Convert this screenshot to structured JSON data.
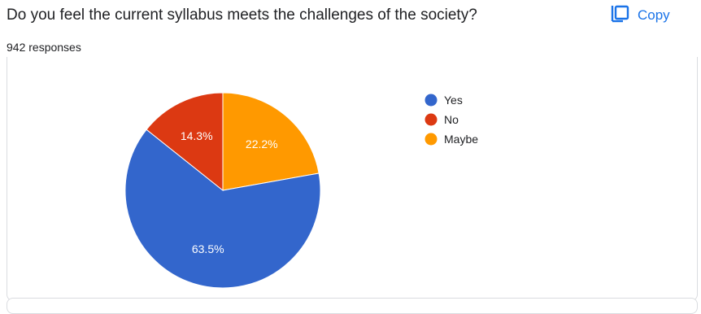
{
  "header": {
    "question": "Do you feel the current syllabus meets the challenges of the society?",
    "responses": "942 responses",
    "copy_label": "Copy"
  },
  "colors": {
    "yes": "#3366cc",
    "no": "#dc3912",
    "maybe": "#ff9900",
    "accent": "#1a73e8"
  },
  "icons": {
    "copy": "copy-icon"
  },
  "chart_data": {
    "type": "pie",
    "categories": [
      "Yes",
      "No",
      "Maybe"
    ],
    "values": [
      63.5,
      14.3,
      22.2
    ],
    "labels": [
      "63.5%",
      "14.3%",
      "22.2%"
    ],
    "legend_position": "right"
  }
}
